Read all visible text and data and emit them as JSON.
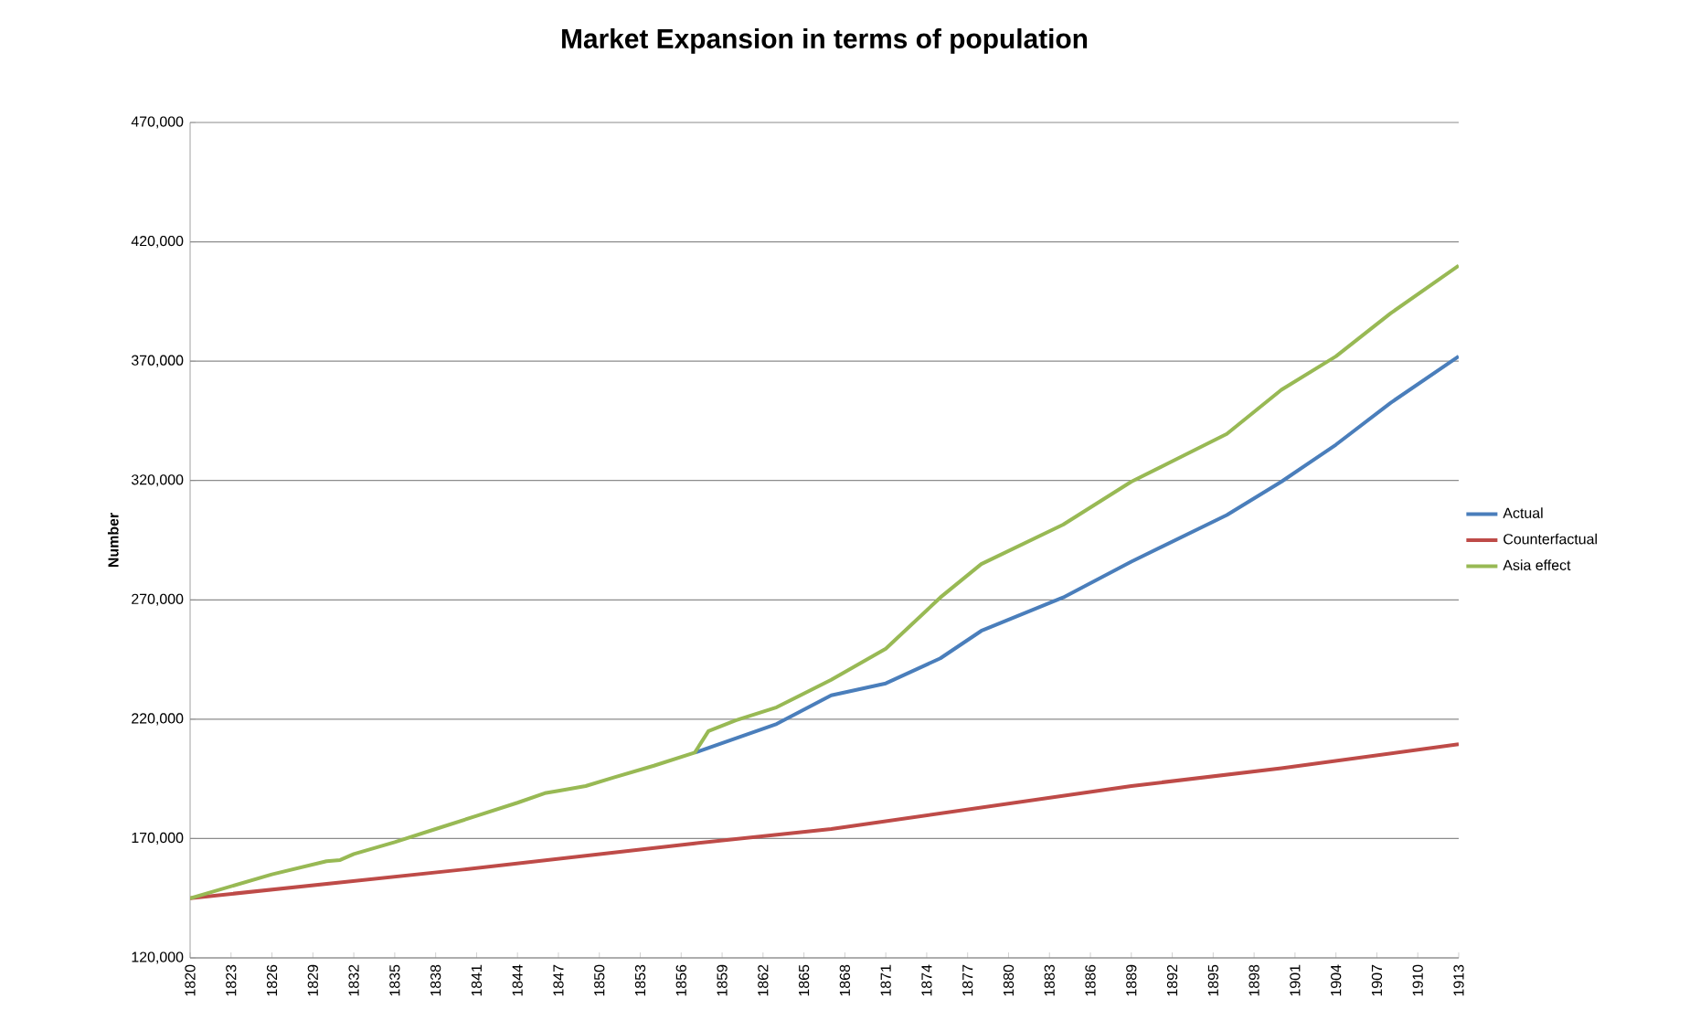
{
  "chart_data": {
    "type": "line",
    "title": "Market Expansion in terms of population",
    "ylabel": "Number",
    "xlim": [
      1820,
      1913
    ],
    "xticks": [
      1820,
      1823,
      1826,
      1829,
      1832,
      1835,
      1838,
      1841,
      1844,
      1847,
      1850,
      1853,
      1856,
      1859,
      1862,
      1865,
      1868,
      1871,
      1874,
      1877,
      1880,
      1883,
      1886,
      1889,
      1892,
      1895,
      1898,
      1901,
      1904,
      1907,
      1910,
      1913
    ],
    "ylim": [
      120000,
      470000
    ],
    "yticks": [
      {
        "value": 120000,
        "label": "120,000"
      },
      {
        "value": 170000,
        "label": "170,000"
      },
      {
        "value": 220000,
        "label": "220,000"
      },
      {
        "value": 270000,
        "label": "270,000"
      },
      {
        "value": 320000,
        "label": "320,000"
      },
      {
        "value": 370000,
        "label": "370,000"
      },
      {
        "value": 420000,
        "label": "420,000"
      },
      {
        "value": 470000,
        "label": "470,000"
      }
    ],
    "grid": "y",
    "legend": "right",
    "marker": "none",
    "line_style": "solid",
    "series": [
      {
        "name": "Actual",
        "color": "#4a7ebb",
        "x": [
          1857,
          1863,
          1867,
          1871,
          1875,
          1878,
          1884,
          1889,
          1896,
          1900,
          1904,
          1908,
          1913
        ],
        "values": [
          206000,
          218000,
          230000,
          235000,
          245500,
          257000,
          271000,
          286000,
          305500,
          319500,
          335000,
          352500,
          372000
        ]
      },
      {
        "name": "Counterfactual",
        "color": "#be4b48",
        "x": [
          1820,
          1840,
          1857,
          1867,
          1889,
          1900,
          1913
        ],
        "values": [
          145000,
          157000,
          168000,
          174000,
          192000,
          199500,
          209500
        ]
      },
      {
        "name": "Asia effect",
        "color": "#98b954",
        "x": [
          1820,
          1826,
          1830,
          1831,
          1832,
          1835,
          1838,
          1841,
          1844,
          1846,
          1847,
          1849,
          1851,
          1854,
          1857,
          1858,
          1860,
          1863,
          1867,
          1871,
          1875,
          1878,
          1884,
          1889,
          1896,
          1900,
          1904,
          1908,
          1913
        ],
        "values": [
          145000,
          155000,
          160500,
          161000,
          163500,
          168500,
          174000,
          179500,
          185000,
          189000,
          190000,
          192000,
          195500,
          200500,
          206000,
          215000,
          219500,
          225000,
          236500,
          249500,
          271000,
          285000,
          301500,
          319500,
          339500,
          358000,
          372000,
          390000,
          410000
        ]
      }
    ]
  }
}
